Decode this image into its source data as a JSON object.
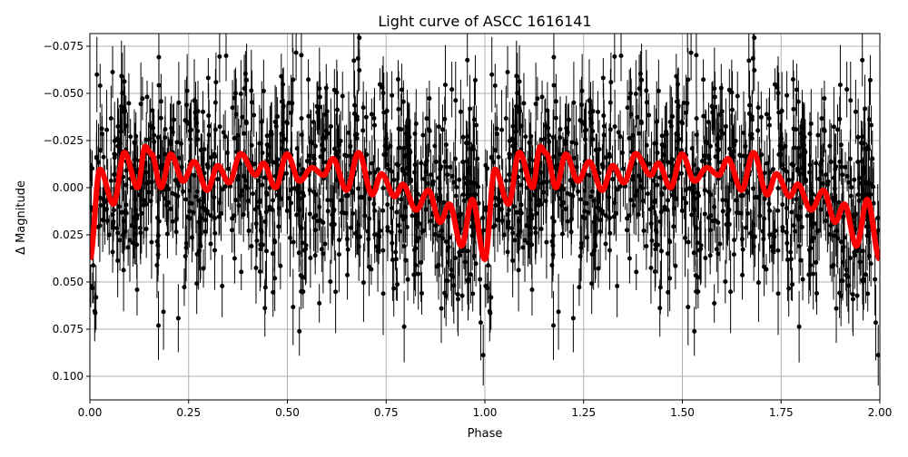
{
  "chart_data": {
    "type": "scatter",
    "title": "Light curve of ASCC 1616141",
    "xlabel": "Phase",
    "ylabel": "Δ Magnitude",
    "xlim": [
      0.0,
      2.0
    ],
    "ylim": [
      0.1125,
      -0.0817
    ],
    "y_inverted": true,
    "grid": true,
    "xticks": [
      "0.00",
      "0.25",
      "0.50",
      "0.75",
      "1.00",
      "1.25",
      "1.50",
      "1.75",
      "2.00"
    ],
    "xtick_values": [
      0,
      0.25,
      0.5,
      0.75,
      1,
      1.25,
      1.5,
      1.75,
      2
    ],
    "yticks": [
      "−0.075",
      "−0.050",
      "−0.025",
      "0.000",
      "0.025",
      "0.050",
      "0.075",
      "0.100"
    ],
    "ytick_values": [
      -0.075,
      -0.05,
      -0.025,
      0,
      0.025,
      0.05,
      0.075,
      0.1
    ],
    "colors": {
      "points": "#000000",
      "model": "#ff0000",
      "grid": "#b0b0b0"
    },
    "model_period_phase": 1.0,
    "model_curve": {
      "phase": [
        0.0,
        0.025,
        0.06,
        0.087,
        0.121,
        0.14,
        0.156,
        0.18,
        0.205,
        0.236,
        0.264,
        0.297,
        0.324,
        0.352,
        0.382,
        0.42,
        0.439,
        0.47,
        0.499,
        0.531,
        0.562,
        0.592,
        0.615,
        0.65,
        0.68,
        0.715,
        0.738,
        0.772,
        0.792,
        0.826,
        0.857,
        0.887,
        0.91,
        0.941,
        0.968,
        1.0
      ],
      "magnitude": [
        0.038,
        -0.0098,
        0.0087,
        -0.0187,
        0.0,
        -0.0218,
        -0.018,
        0.0,
        -0.0178,
        -0.0034,
        -0.0138,
        0.0014,
        -0.0117,
        -0.0026,
        -0.018,
        -0.0066,
        -0.013,
        0.0,
        -0.0178,
        -0.0034,
        -0.0106,
        -0.0066,
        -0.0154,
        0.0014,
        -0.0186,
        0.0038,
        -0.0074,
        0.0047,
        -0.0018,
        0.0119,
        0.0014,
        0.0183,
        0.0087,
        0.031,
        0.0062,
        0.038
      ]
    }
  }
}
